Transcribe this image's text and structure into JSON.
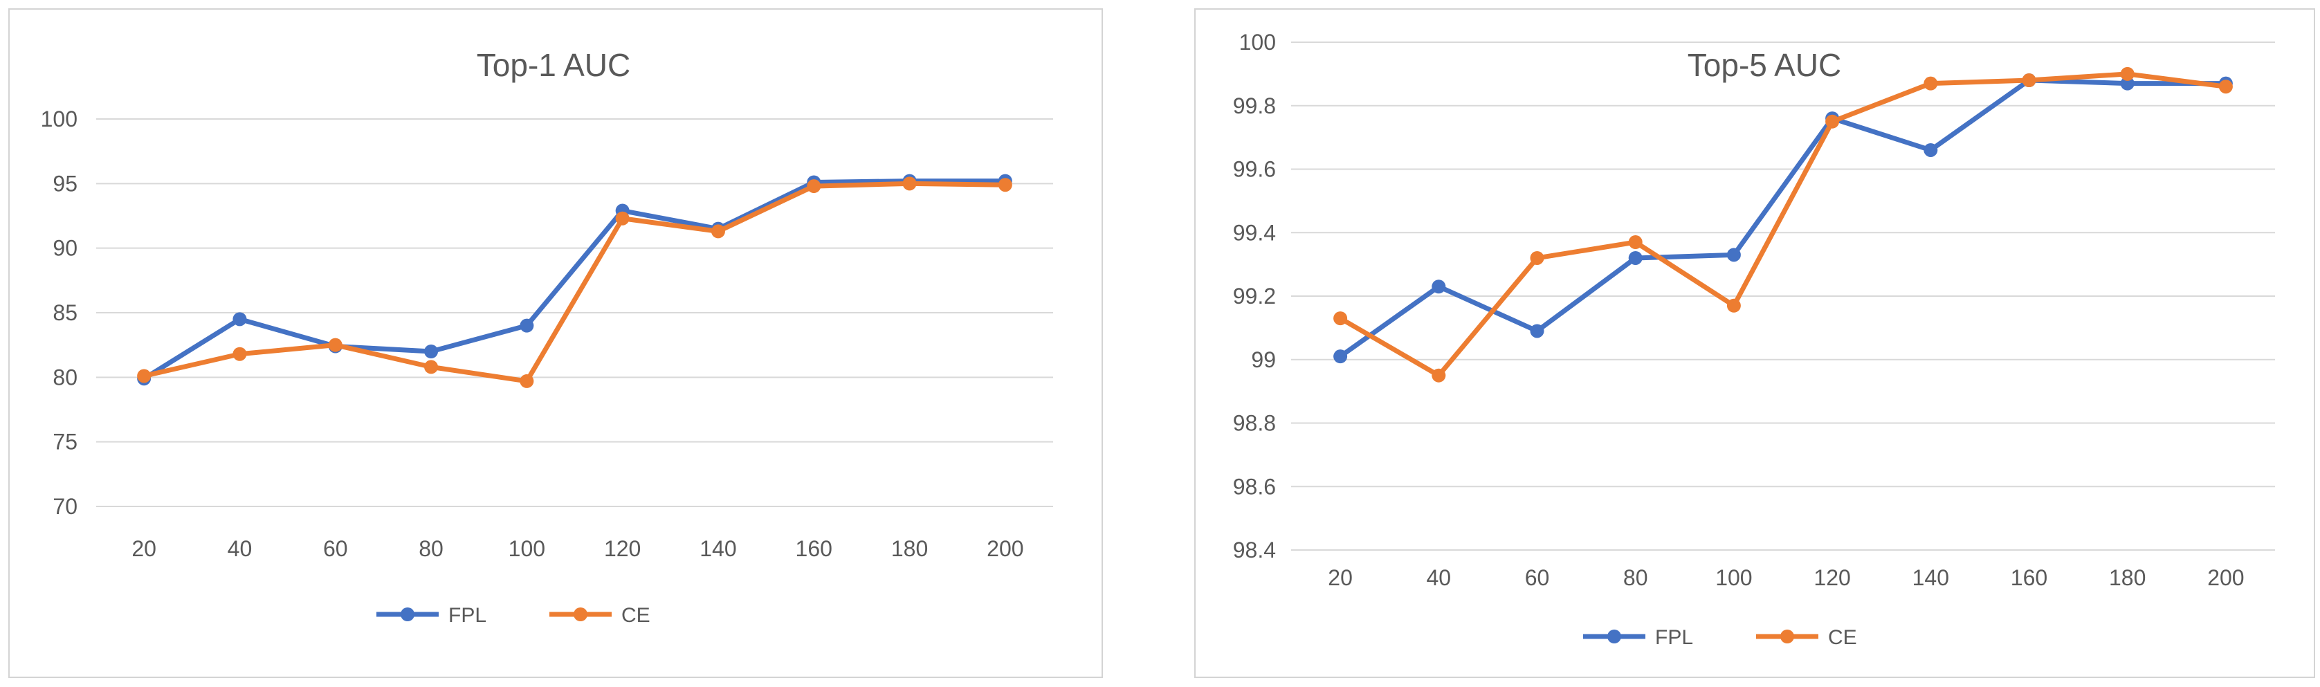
{
  "chart_data": [
    {
      "type": "line",
      "title": "Top-1 AUC",
      "categories": [
        "20",
        "40",
        "60",
        "80",
        "100",
        "120",
        "140",
        "160",
        "180",
        "200"
      ],
      "ylim": [
        70,
        100
      ],
      "yticks": [
        "70",
        "75",
        "80",
        "85",
        "90",
        "95",
        "100"
      ],
      "grid": true,
      "legend": "bottom",
      "series": [
        {
          "name": "FPL",
          "color": "#4472c4",
          "values": [
            79.9,
            84.5,
            82.4,
            82.0,
            84.0,
            92.9,
            91.5,
            95.1,
            95.2,
            95.2
          ]
        },
        {
          "name": "CE",
          "color": "#ed7d31",
          "values": [
            80.1,
            81.8,
            82.5,
            80.8,
            79.7,
            92.3,
            91.3,
            94.8,
            95.0,
            94.9
          ]
        }
      ]
    },
    {
      "type": "line",
      "title": "Top-5 AUC",
      "categories": [
        "20",
        "40",
        "60",
        "80",
        "100",
        "120",
        "140",
        "160",
        "180",
        "200"
      ],
      "ylim": [
        98.4,
        100
      ],
      "yticks": [
        "98.4",
        "98.6",
        "98.8",
        "99",
        "99.2",
        "99.4",
        "99.6",
        "99.8",
        "100"
      ],
      "grid": true,
      "legend": "bottom",
      "series": [
        {
          "name": "FPL",
          "color": "#4472c4",
          "values": [
            99.01,
            99.23,
            99.09,
            99.32,
            99.33,
            99.76,
            99.66,
            99.88,
            99.87,
            99.87
          ]
        },
        {
          "name": "CE",
          "color": "#ed7d31",
          "values": [
            99.13,
            98.95,
            99.32,
            99.37,
            99.17,
            99.75,
            99.87,
            99.88,
            99.9,
            99.86
          ]
        }
      ]
    }
  ]
}
